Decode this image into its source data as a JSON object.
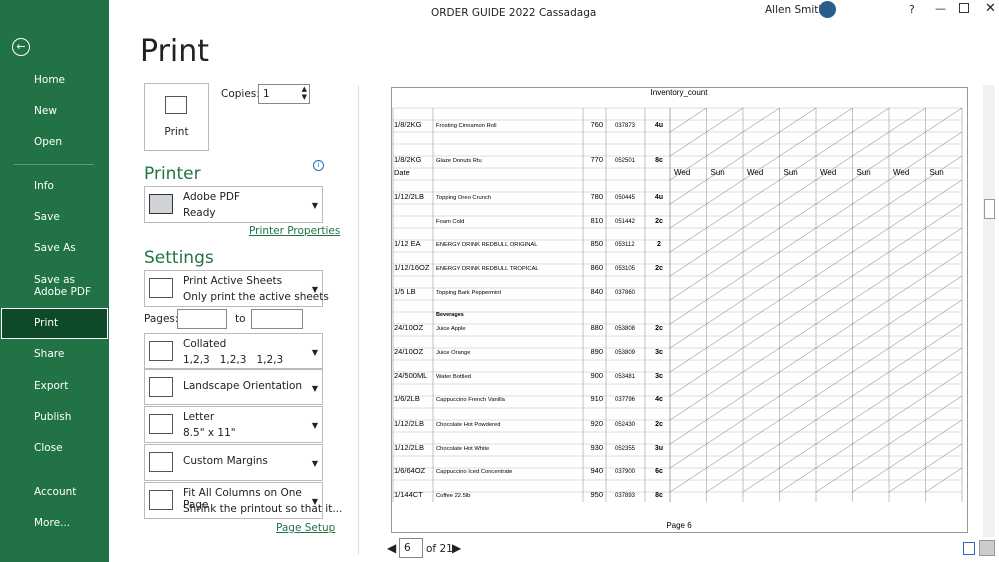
{
  "title_bar": {
    "title": "ORDER GUIDE 2022 Cassadaga",
    "user": "Allen Smith",
    "help": "?"
  },
  "sidebar": {
    "items": [
      "Home",
      "New",
      "Open",
      "Info",
      "Save",
      "Save As",
      "Save as Adobe PDF",
      "Print",
      "Share",
      "Export",
      "Publish",
      "Close"
    ],
    "footer": [
      "Account",
      "More..."
    ]
  },
  "print_panel": {
    "heading": "Print",
    "print_button": "Print",
    "copies_label": "Copies:",
    "copies": "1",
    "printer": {
      "heading": "Printer",
      "name": "Adobe PDF",
      "status": "Ready",
      "properties": "Printer Properties"
    },
    "settings": {
      "heading": "Settings",
      "sheets": {
        "main": "Print Active Sheets",
        "sub": "Only print the active sheets"
      },
      "pages_label": "Pages:",
      "to_label": "to",
      "collation": {
        "main": "Collated",
        "sub": "1,2,3   1,2,3   1,2,3"
      },
      "orientation": {
        "main": "Landscape Orientation"
      },
      "paper": {
        "main": "Letter",
        "sub": "8.5\" x 11\""
      },
      "margins": {
        "main": "Custom Margins"
      },
      "scaling": {
        "main": "Fit All Columns on One Page",
        "sub": "Shrink the printout so that it..."
      }
    },
    "page_setup": "Page Setup"
  },
  "preview": {
    "sheet_title": "Inventory_count",
    "rows": [
      {
        "size": "1/8/2KG",
        "item": "Frosting Cinnamon Roll",
        "num": 760,
        "code": "037873",
        "qty": "4u"
      },
      {
        "size": "1/8/2KG",
        "item": "Glaze Donuts Rtu",
        "num": 770,
        "code": "052501",
        "qty": "8c"
      },
      {
        "size": "Date",
        "days": [
          "Wed",
          "Sun",
          "Wed",
          "Sun",
          "Wed",
          "Sun",
          "Wed",
          "Sun"
        ]
      },
      {
        "size": "1/12/2LB",
        "item": "Topping Oreo Crunch",
        "num": 780,
        "code": "050445",
        "qty": "4u"
      },
      {
        "item": "Foam Cold",
        "num": 810,
        "code": "051442",
        "qty": "2c"
      },
      {
        "size": "1/12 EA",
        "item": "ENERGY DRINK REDBULL ORIGINAL",
        "num": 850,
        "code": "053112",
        "qty": "2"
      },
      {
        "size": "1/12/16OZ",
        "item": "ENERGY DRINK REDBULL TROPICAL",
        "num": 860,
        "code": "053105",
        "qty": "2c"
      },
      {
        "size": "1/5 LB",
        "item": "Topping Bark Peppermint",
        "num": 840,
        "code": "037860"
      },
      {
        "section": "Beverages"
      },
      {
        "size": "24/10OZ",
        "item": "Juice Apple",
        "num": 880,
        "code": "053808",
        "qty": "2c"
      },
      {
        "size": "24/10OZ",
        "item": "Juice Orange",
        "num": 890,
        "code": "053809",
        "qty": "3c"
      },
      {
        "size": "24/500ML",
        "item": "Water Bottled",
        "num": 900,
        "code": "053481",
        "qty": "3c"
      },
      {
        "size": "1/6/2LB",
        "item": "Cappuccino French Vanilla",
        "num": 910,
        "code": "037796",
        "qty": "4c"
      },
      {
        "size": "1/12/2LB",
        "item": "Chocolate Hot Powdered",
        "num": 920,
        "code": "052430",
        "qty": "2c"
      },
      {
        "size": "1/12/2LB",
        "item": "Chocolate Hot White",
        "num": 930,
        "code": "052355",
        "qty": "3u"
      },
      {
        "size": "1/6/64OZ",
        "item": "Cappuccino Iced Concentrate",
        "num": 940,
        "code": "037900",
        "qty": "6c"
      },
      {
        "size": "1/144CT",
        "item": "Coffee 22.5lb",
        "num": 950,
        "code": "037893",
        "qty": "8c"
      }
    ],
    "page_label": "Page 6",
    "current_page": "6",
    "page_count": "of 21"
  }
}
